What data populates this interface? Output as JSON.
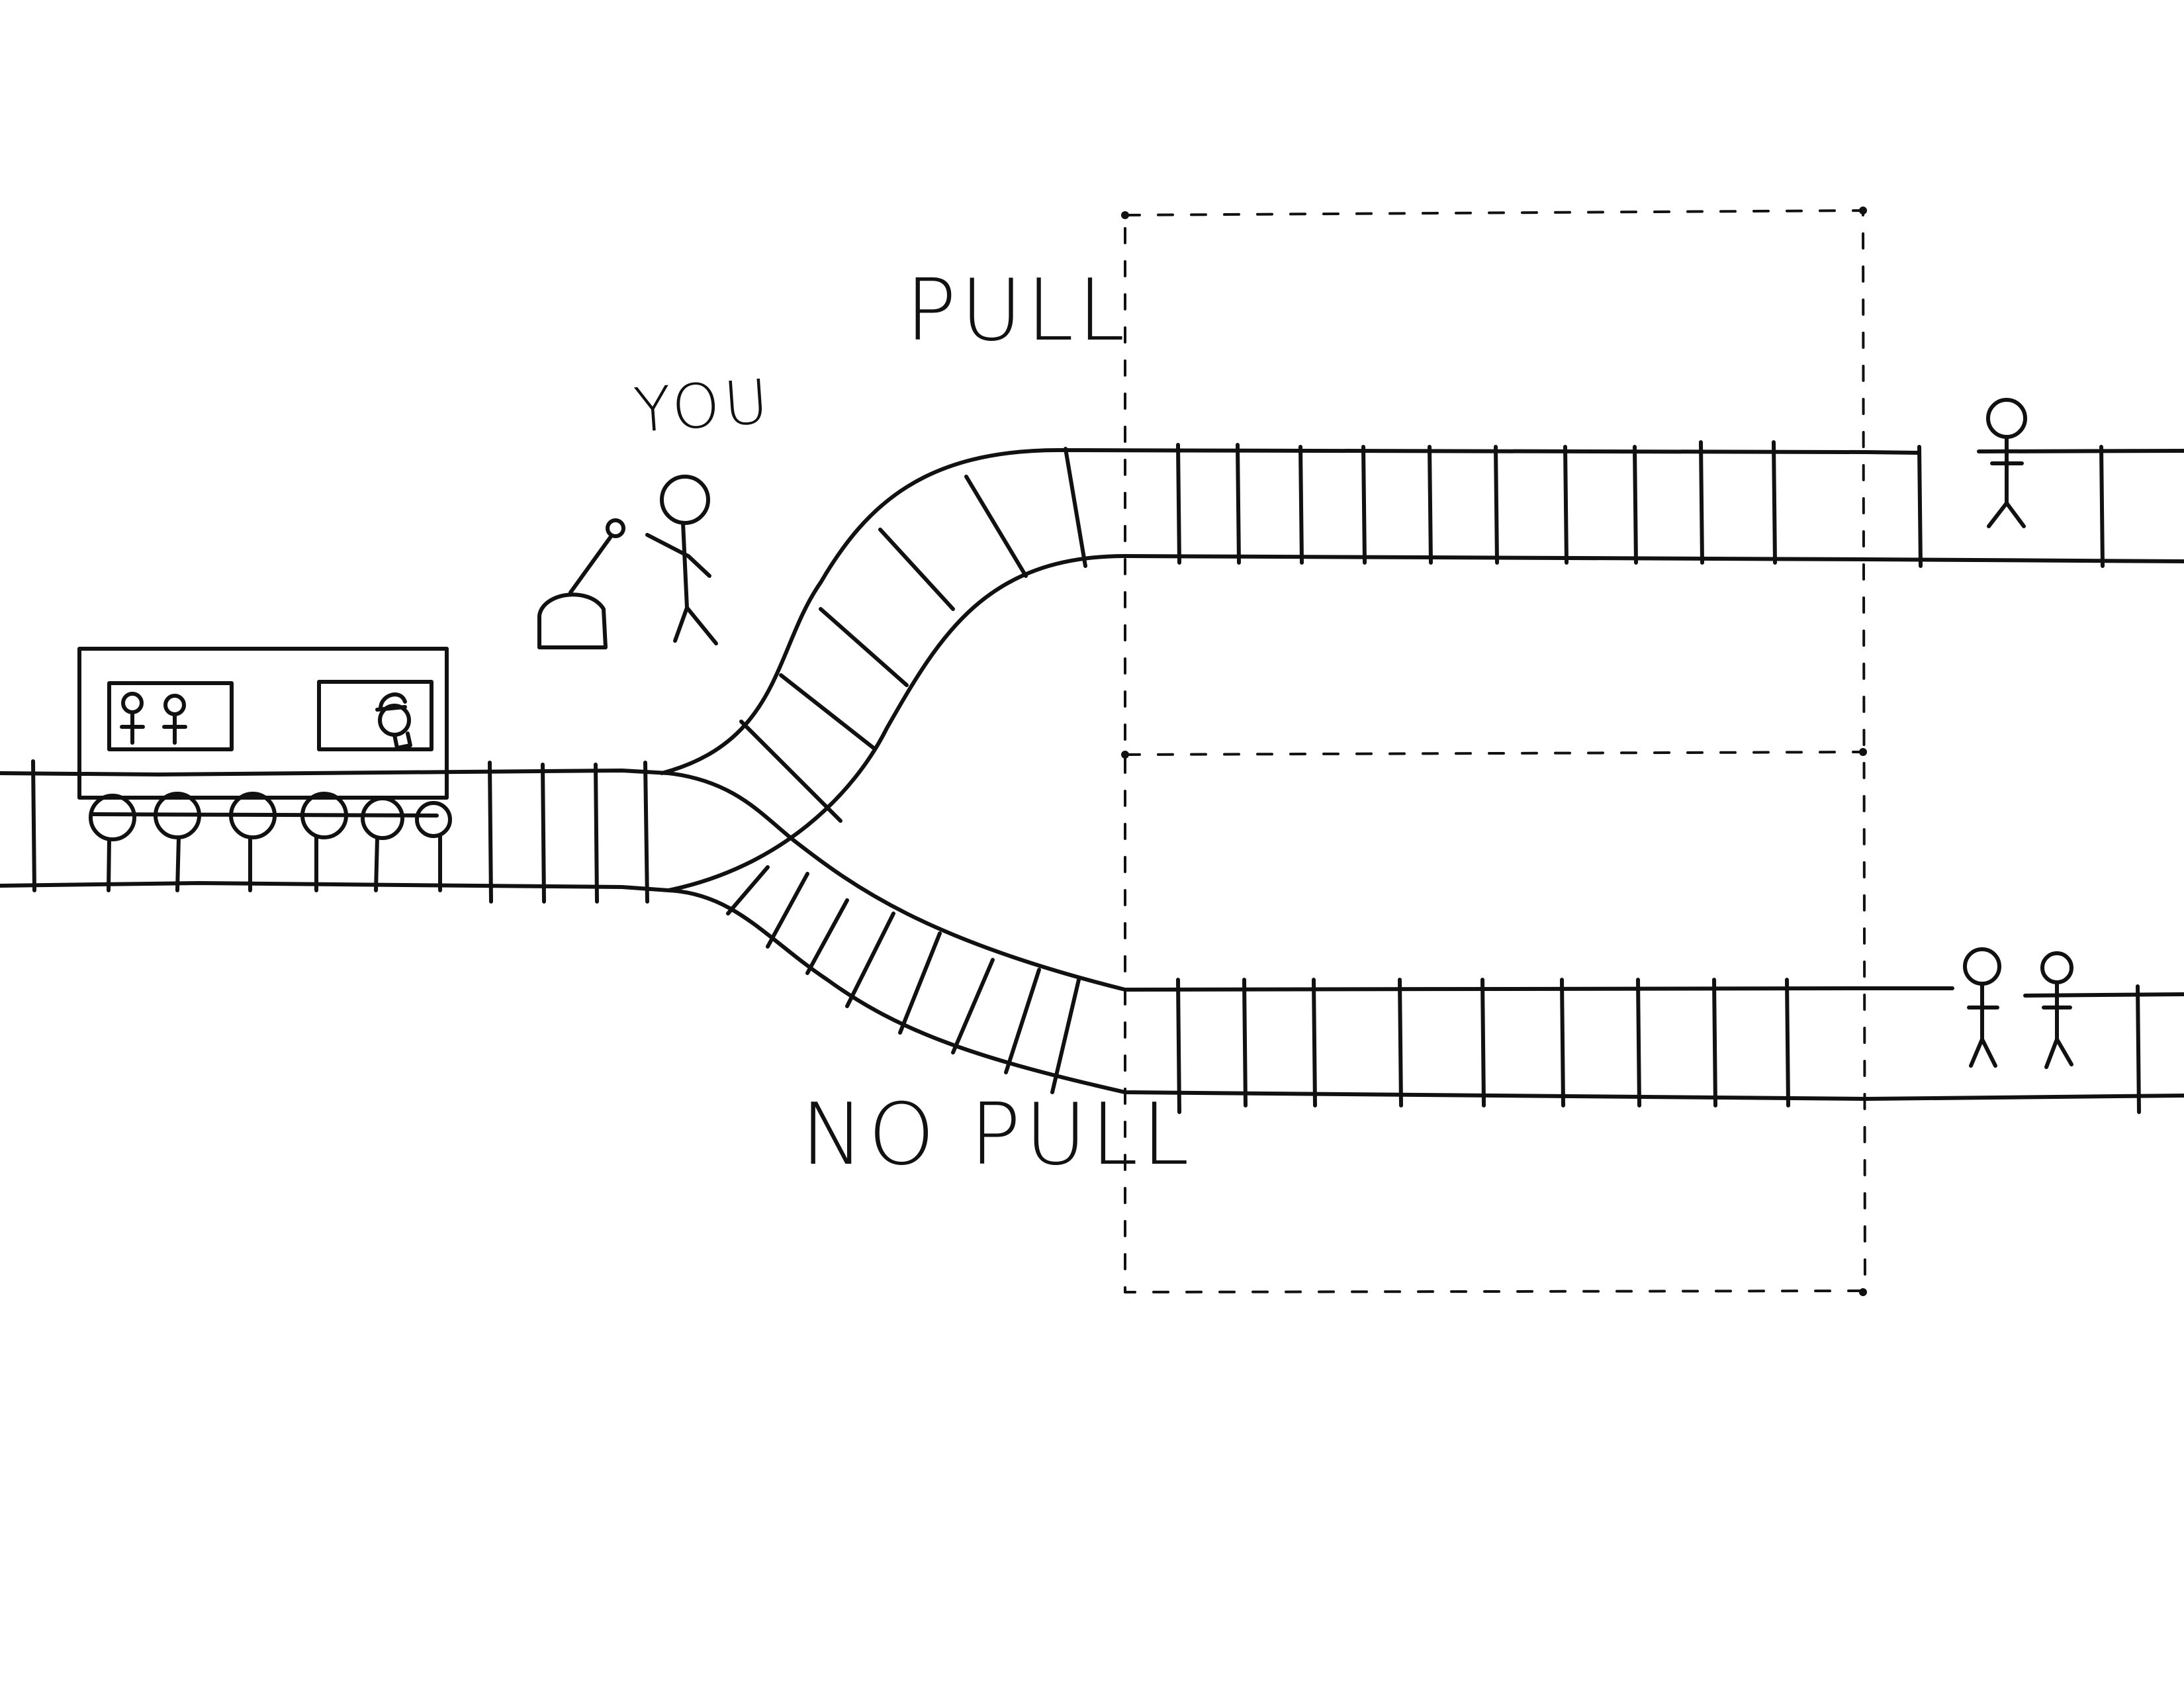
{
  "labels": {
    "you": "YOU",
    "pull": "PULL",
    "no_pull": "NO PULL"
  },
  "colors": {
    "ink": "#111111",
    "background": "#ffffff"
  },
  "people": {
    "upper_track_count": 1,
    "lower_track_count": 2,
    "train_passenger_count": 2,
    "train_conductor_count": 1
  }
}
